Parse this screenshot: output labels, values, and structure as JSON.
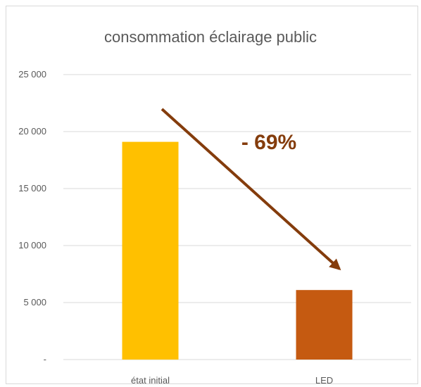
{
  "chart_data": {
    "type": "bar",
    "title": "consommation éclairage public",
    "categories": [
      "état initial",
      "LED"
    ],
    "values": [
      19100,
      6100
    ],
    "colors": [
      "#ffc000",
      "#c55a11"
    ],
    "ylim": [
      0,
      25000
    ],
    "yticks": [
      0,
      5000,
      10000,
      15000,
      20000,
      25000
    ],
    "ytick_labels": [
      "-",
      "5 000",
      "10 000",
      "15 000",
      "20 000",
      "25 000"
    ],
    "grid": true,
    "legend": "none",
    "annotation": {
      "text": "- 69%",
      "color": "#843c0c"
    }
  }
}
